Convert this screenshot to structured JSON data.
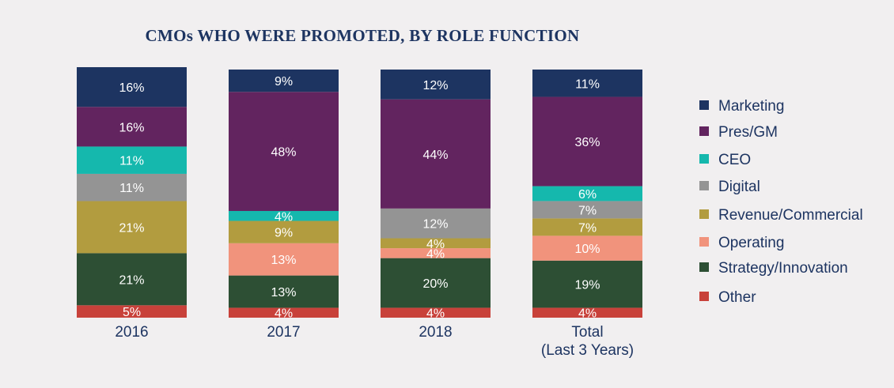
{
  "chart_data": {
    "type": "bar",
    "stacked": true,
    "title": "CMOs WHO WERE PROMOTED, BY ROLE FUNCTION",
    "categories": [
      "2016",
      "2017",
      "2018",
      "Total\n(Last 3 Years)"
    ],
    "legend_position": "right",
    "grid": false,
    "series": [
      {
        "name": "Marketing",
        "color": "#1d3461",
        "values": [
          16,
          9,
          12,
          11
        ]
      },
      {
        "name": "Pres/GM",
        "color": "#62245f",
        "values": [
          16,
          48,
          44,
          36
        ]
      },
      {
        "name": "CEO",
        "color": "#15b8ad",
        "values": [
          11,
          4,
          0,
          6
        ]
      },
      {
        "name": "Digital",
        "color": "#949494",
        "values": [
          11,
          0,
          12,
          7
        ]
      },
      {
        "name": "Revenue/Commercial",
        "color": "#b29c3f",
        "values": [
          21,
          9,
          4,
          7
        ]
      },
      {
        "name": "Operating",
        "color": "#f1937c",
        "values": [
          0,
          13,
          4,
          10
        ]
      },
      {
        "name": "Strategy/Innovation",
        "color": "#2d4f34",
        "values": [
          21,
          13,
          20,
          19
        ]
      },
      {
        "name": "Other",
        "color": "#c8413a",
        "values": [
          5,
          4,
          4,
          4
        ]
      }
    ],
    "value_suffix": "%"
  }
}
